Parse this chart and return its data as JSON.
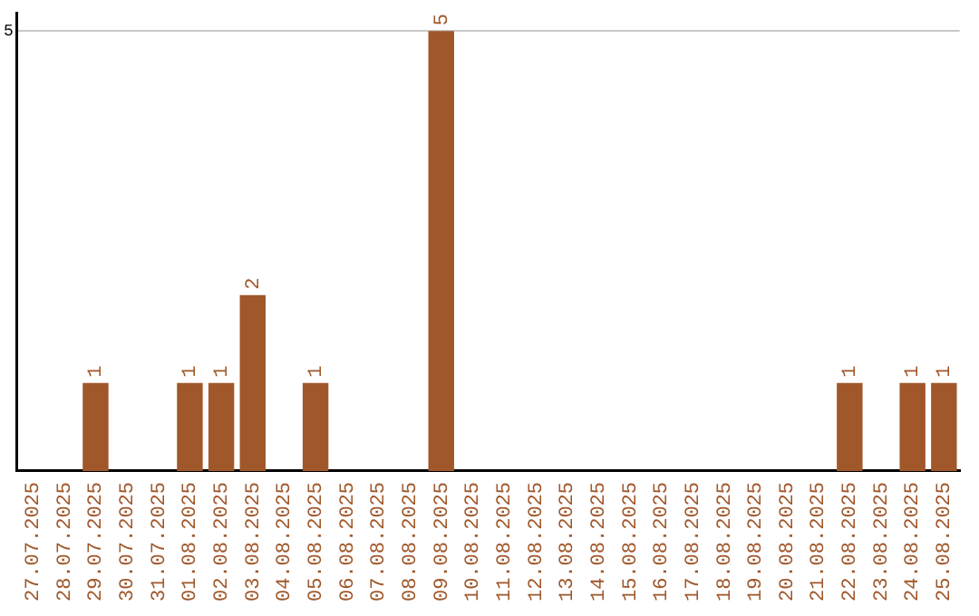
{
  "chart_data": {
    "type": "bar",
    "categories": [
      "27.07.2025",
      "28.07.2025",
      "29.07.2025",
      "30.07.2025",
      "31.07.2025",
      "01.08.2025",
      "02.08.2025",
      "03.08.2025",
      "04.08.2025",
      "05.08.2025",
      "06.08.2025",
      "07.08.2025",
      "08.08.2025",
      "09.08.2025",
      "10.08.2025",
      "11.08.2025",
      "12.08.2025",
      "13.08.2025",
      "14.08.2025",
      "15.08.2025",
      "16.08.2025",
      "17.08.2025",
      "18.08.2025",
      "19.08.2025",
      "20.08.2025",
      "21.08.2025",
      "22.08.2025",
      "23.08.2025",
      "24.08.2025",
      "25.08.2025"
    ],
    "values": [
      0,
      0,
      1,
      0,
      0,
      1,
      1,
      2,
      0,
      1,
      0,
      0,
      0,
      5,
      0,
      0,
      0,
      0,
      0,
      0,
      0,
      0,
      0,
      0,
      0,
      0,
      1,
      0,
      1,
      1
    ],
    "value_labels": [
      null,
      null,
      "1",
      null,
      null,
      "1",
      "1",
      "2",
      null,
      "1",
      null,
      null,
      null,
      "5",
      null,
      null,
      null,
      null,
      null,
      null,
      null,
      null,
      null,
      null,
      null,
      null,
      "1",
      null,
      "1",
      "1"
    ],
    "color": "#a0572a",
    "ylim": [
      0,
      5.2
    ],
    "yticks": [
      5
    ],
    "grid": "y",
    "legend": false
  }
}
